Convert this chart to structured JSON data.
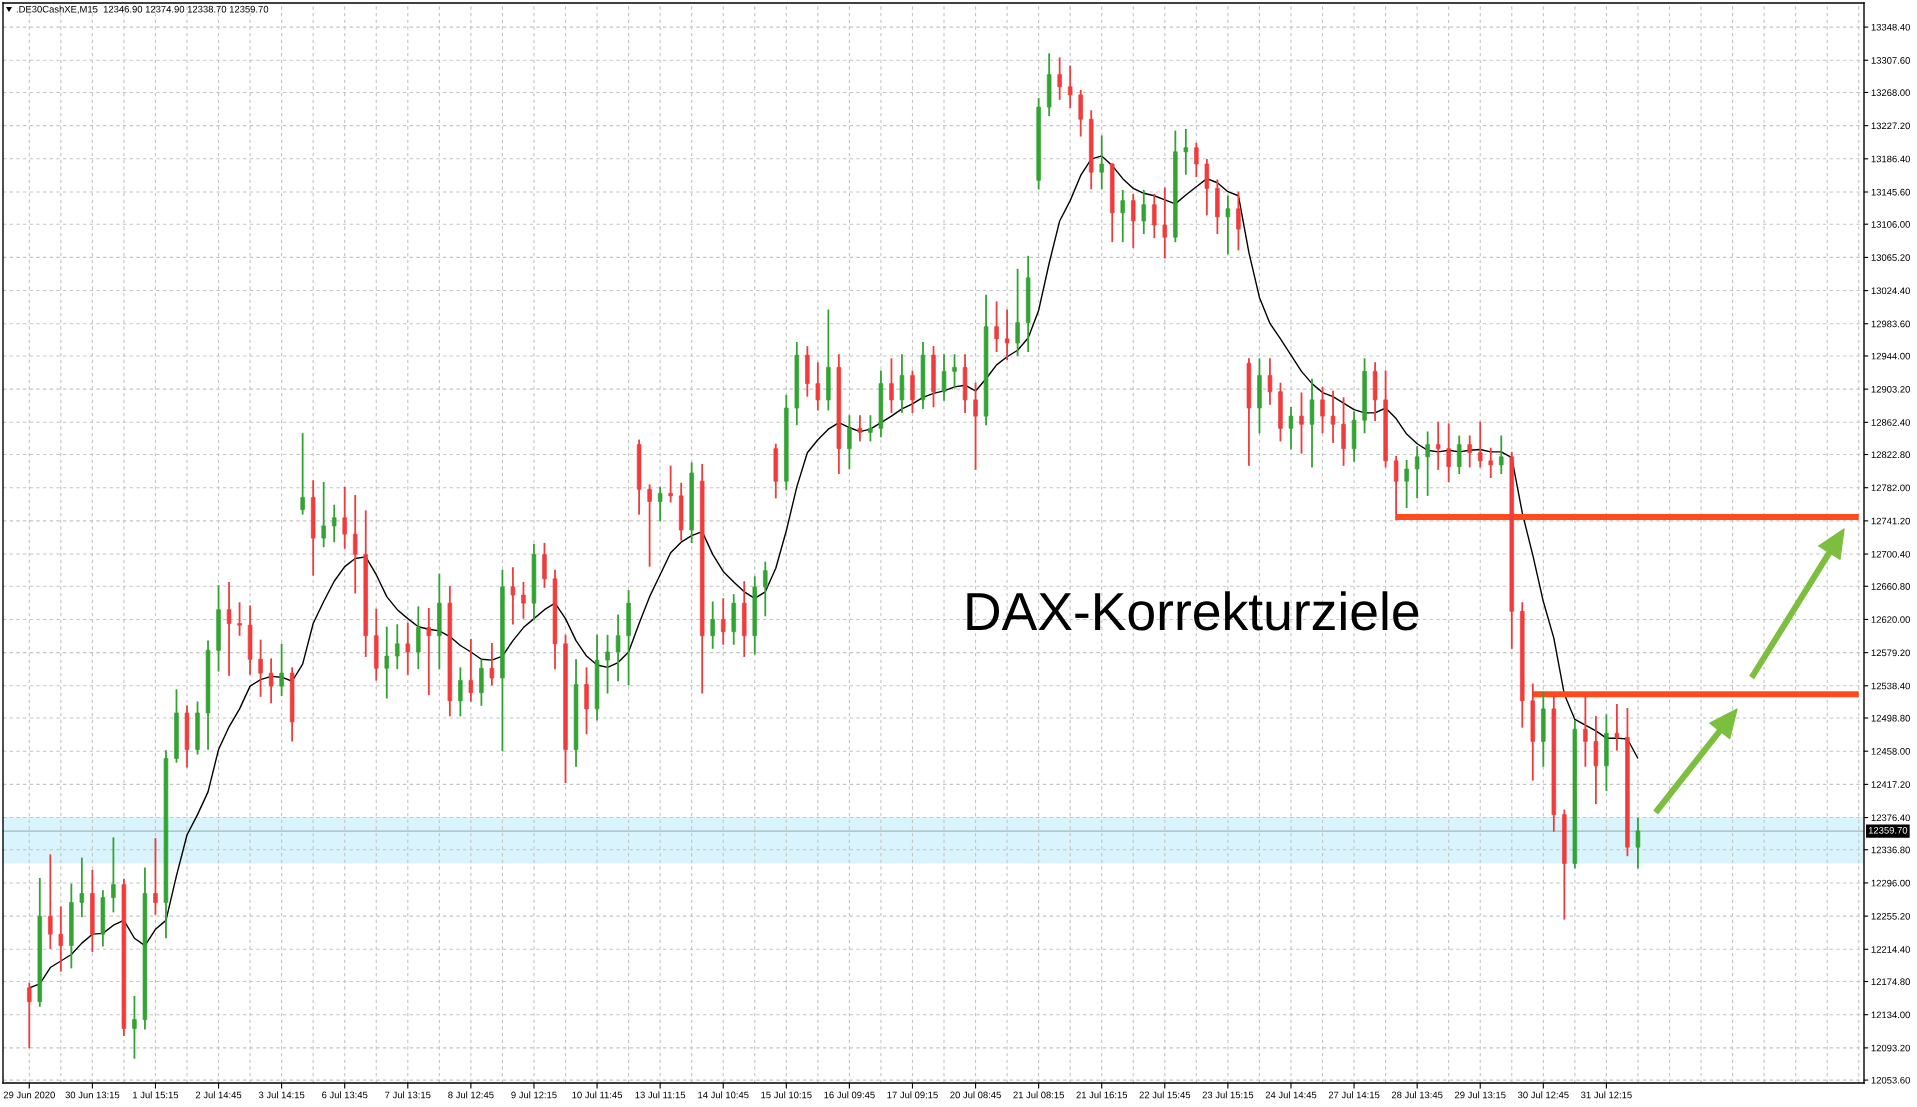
{
  "chart_data": {
    "type": "candlestick",
    "title": "DAX-Korrekturziele",
    "annotations": [
      ".DE30CashXE,M15  12346.90 12374.90 12338.70 12359.70"
    ],
    "categories": [
      "29 Jun 2020",
      null,
      null,
      null,
      null,
      null,
      "30 Jun 13:15",
      null,
      null,
      null,
      null,
      null,
      "1 Jul 15:15",
      null,
      null,
      null,
      null,
      null,
      "2 Jul 14:45",
      null,
      null,
      null,
      null,
      null,
      "3 Jul 14:15",
      null,
      null,
      null,
      null,
      null,
      "6 Jul 13:45",
      null,
      null,
      null,
      null,
      null,
      "7 Jul 13:15",
      null,
      null,
      null,
      null,
      null,
      "8 Jul 12:45",
      null,
      null,
      null,
      null,
      null,
      "9 Jul 12:15",
      null,
      null,
      null,
      null,
      null,
      "10 Jul 11:45",
      null,
      null,
      null,
      null,
      null,
      "13 Jul 11:15",
      null,
      null,
      null,
      null,
      null,
      "14 Jul 10:45",
      null,
      null,
      null,
      null,
      null,
      "15 Jul 10:15",
      null,
      null,
      null,
      null,
      null,
      "16 Jul 09:45",
      null,
      null,
      null,
      null,
      null,
      "17 Jul 09:15",
      null,
      null,
      null,
      null,
      null,
      "20 Jul 08:45",
      null,
      null,
      null,
      null,
      null,
      "21 Jul 08:15",
      null,
      null,
      null,
      null,
      null,
      "21 Jul 16:15",
      null,
      null,
      null,
      null,
      null,
      "22 Jul 15:45",
      null,
      null,
      null,
      null,
      null,
      "23 Jul 15:15",
      null,
      null,
      null,
      null,
      null,
      "24 Jul 14:45",
      null,
      null,
      null,
      null,
      null,
      "27 Jul 14:15",
      null,
      null,
      null,
      null,
      null,
      "28 Jul 13:45",
      null,
      null,
      null,
      null,
      null,
      "29 Jul 13:15",
      null,
      null,
      null,
      null,
      null,
      "30 Jul 12:45",
      null,
      null,
      null,
      null,
      null,
      "31 Jul 12:15",
      null,
      null,
      null,
      null,
      null,
      null,
      null,
      null,
      null,
      null,
      null,
      null,
      null,
      null,
      null,
      null,
      null,
      null,
      null,
      null,
      null,
      null,
      null,
      null
    ],
    "ohlc": [
      [
        12167,
        12172,
        12094,
        12150
      ],
      [
        12150,
        12301,
        12145,
        12255
      ],
      [
        12255,
        12330,
        12216,
        12233
      ],
      [
        12233,
        12266,
        12188,
        12219
      ],
      [
        12219,
        12294,
        12192,
        12272
      ],
      [
        12272,
        12326,
        12255,
        12283
      ],
      [
        12283,
        12311,
        12212,
        12233
      ],
      [
        12233,
        12286,
        12219,
        12278
      ],
      [
        12278,
        12351,
        12261,
        12294
      ],
      [
        12294,
        12300,
        12109,
        12117
      ],
      [
        12117,
        12156,
        12081,
        12128
      ],
      [
        12128,
        12314,
        12117,
        12283
      ],
      [
        12283,
        12350,
        12258,
        12272
      ],
      [
        12272,
        12458,
        12229,
        12449
      ],
      [
        12449,
        12533,
        12445,
        12505
      ],
      [
        12505,
        12513,
        12439,
        12460
      ],
      [
        12460,
        12518,
        12455,
        12505
      ],
      [
        12505,
        12593,
        12461,
        12582
      ],
      [
        12582,
        12661,
        12557,
        12632
      ],
      [
        12632,
        12665,
        12552,
        12615
      ],
      [
        12615,
        12640,
        12601,
        12613
      ],
      [
        12613,
        12636,
        12553,
        12571
      ],
      [
        12571,
        12594,
        12526,
        12554
      ],
      [
        12554,
        12571,
        12518,
        12538
      ],
      [
        12538,
        12589,
        12527,
        12554
      ],
      [
        12554,
        12560,
        12471,
        12494
      ],
      [
        12755,
        12848,
        12750,
        12770
      ],
      [
        12770,
        12790,
        12675,
        12720
      ],
      [
        12720,
        12788,
        12710,
        12735
      ],
      [
        12735,
        12760,
        12716,
        12745
      ],
      [
        12745,
        12782,
        12708,
        12725
      ],
      [
        12725,
        12772,
        12653,
        12700
      ],
      [
        12700,
        12753,
        12575,
        12600
      ],
      [
        12600,
        12632,
        12546,
        12560
      ],
      [
        12560,
        12610,
        12524,
        12575
      ],
      [
        12575,
        12613,
        12560,
        12590
      ],
      [
        12590,
        12615,
        12553,
        12580
      ],
      [
        12580,
        12635,
        12560,
        12610
      ],
      [
        12610,
        12633,
        12528,
        12600
      ],
      [
        12600,
        12675,
        12560,
        12640
      ],
      [
        12640,
        12660,
        12502,
        12520
      ],
      [
        12520,
        12560,
        12502,
        12545
      ],
      [
        12545,
        12595,
        12520,
        12530
      ],
      [
        12530,
        12570,
        12515,
        12560
      ],
      [
        12560,
        12590,
        12540,
        12548
      ],
      [
        12548,
        12680,
        12459,
        12660
      ],
      [
        12660,
        12683,
        12615,
        12650
      ],
      [
        12650,
        12665,
        12622,
        12640
      ],
      [
        12640,
        12712,
        12620,
        12700
      ],
      [
        12700,
        12713,
        12660,
        12670
      ],
      [
        12670,
        12680,
        12560,
        12590
      ],
      [
        12590,
        12600,
        12420,
        12460
      ],
      [
        12460,
        12570,
        12440,
        12540
      ],
      [
        12540,
        12560,
        12480,
        12510
      ],
      [
        12510,
        12600,
        12497,
        12570
      ],
      [
        12570,
        12600,
        12530,
        12580
      ],
      [
        12580,
        12625,
        12545,
        12600
      ],
      [
        12600,
        12655,
        12540,
        12640
      ],
      [
        12835,
        12840,
        12750,
        12780
      ],
      [
        12780,
        12785,
        12686,
        12765
      ],
      [
        12765,
        12782,
        12742,
        12775
      ],
      [
        12775,
        12808,
        12765,
        12772
      ],
      [
        12772,
        12787,
        12718,
        12730
      ],
      [
        12730,
        12812,
        12715,
        12800
      ],
      [
        12790,
        12810,
        12530,
        12600
      ],
      [
        12600,
        12641,
        12585,
        12620
      ],
      [
        12620,
        12645,
        12590,
        12605
      ],
      [
        12605,
        12650,
        12590,
        12640
      ],
      [
        12640,
        12666,
        12575,
        12600
      ],
      [
        12600,
        12672,
        12578,
        12660
      ],
      [
        12660,
        12690,
        12625,
        12680
      ],
      [
        12830,
        12835,
        12770,
        12790
      ],
      [
        12790,
        12895,
        12780,
        12880
      ],
      [
        12880,
        12960,
        12860,
        12945
      ],
      [
        12945,
        12955,
        12895,
        12910
      ],
      [
        12910,
        12935,
        12878,
        12890
      ],
      [
        12890,
        13000,
        12878,
        12930
      ],
      [
        12930,
        12945,
        12800,
        12830
      ],
      [
        12830,
        12870,
        12806,
        12855
      ],
      [
        12855,
        12870,
        12840,
        12850
      ],
      [
        12850,
        12870,
        12840,
        12855
      ],
      [
        12855,
        12925,
        12845,
        12910
      ],
      [
        12910,
        12940,
        12875,
        12890
      ],
      [
        12890,
        12945,
        12875,
        12920
      ],
      [
        12920,
        12925,
        12875,
        12890
      ],
      [
        12890,
        12960,
        12880,
        12945
      ],
      [
        12945,
        12955,
        12882,
        12900
      ],
      [
        12900,
        12945,
        12890,
        12925
      ],
      [
        12925,
        12945,
        12905,
        12930
      ],
      [
        12930,
        12945,
        12875,
        12890
      ],
      [
        12890,
        12910,
        12805,
        12870
      ],
      [
        12870,
        13018,
        12860,
        12980
      ],
      [
        12980,
        13010,
        12950,
        12965
      ],
      [
        12965,
        13000,
        12940,
        12960
      ],
      [
        12960,
        13050,
        12945,
        12985
      ],
      [
        12985,
        13066,
        12950,
        13040
      ],
      [
        13160,
        13260,
        13150,
        13250
      ],
      [
        13250,
        13315,
        13240,
        13290
      ],
      [
        13290,
        13310,
        13260,
        13275
      ],
      [
        13275,
        13300,
        13250,
        13265
      ],
      [
        13265,
        13270,
        13215,
        13235
      ],
      [
        13235,
        13245,
        13150,
        13170
      ],
      [
        13170,
        13214,
        13150,
        13180
      ],
      [
        13180,
        13180,
        13085,
        13120
      ],
      [
        13120,
        13147,
        13085,
        13135
      ],
      [
        13135,
        13142,
        13078,
        13110
      ],
      [
        13110,
        13147,
        13095,
        13130
      ],
      [
        13130,
        13142,
        13090,
        13105
      ],
      [
        13105,
        13150,
        13065,
        13090
      ],
      [
        13090,
        13220,
        13085,
        13195
      ],
      [
        13195,
        13222,
        13168,
        13200
      ],
      [
        13200,
        13205,
        13165,
        13180
      ],
      [
        13180,
        13185,
        13118,
        13150
      ],
      [
        13150,
        13160,
        13095,
        13115
      ],
      [
        13115,
        13140,
        13070,
        13125
      ],
      [
        13125,
        13145,
        13075,
        13100
      ],
      [
        12935,
        12940,
        12810,
        12880
      ],
      [
        12880,
        12940,
        12850,
        12920
      ],
      [
        12920,
        12940,
        12885,
        12900
      ],
      [
        12900,
        12910,
        12840,
        12855
      ],
      [
        12855,
        12880,
        12830,
        12870
      ],
      [
        12870,
        12898,
        12825,
        12860
      ],
      [
        12860,
        12915,
        12808,
        12890
      ],
      [
        12890,
        12905,
        12850,
        12870
      ],
      [
        12870,
        12900,
        12838,
        12860
      ],
      [
        12860,
        12892,
        12810,
        12830
      ],
      [
        12830,
        12875,
        12815,
        12865
      ],
      [
        12865,
        12940,
        12850,
        12925
      ],
      [
        12925,
        12935,
        12865,
        12890
      ],
      [
        12890,
        12925,
        12808,
        12815
      ],
      [
        12815,
        12820,
        12743,
        12790
      ],
      [
        12790,
        12815,
        12758,
        12805
      ],
      [
        12805,
        12832,
        12770,
        12820
      ],
      [
        12820,
        12850,
        12773,
        12835
      ],
      [
        12835,
        12862,
        12805,
        12830
      ],
      [
        12830,
        12860,
        12790,
        12808
      ],
      [
        12808,
        12845,
        12800,
        12835
      ],
      [
        12835,
        12845,
        12808,
        12825
      ],
      [
        12825,
        12862,
        12808,
        12815
      ],
      [
        12815,
        12830,
        12795,
        12810
      ],
      [
        12810,
        12845,
        12800,
        12820
      ],
      [
        12820,
        12825,
        12585,
        12630
      ],
      [
        12630,
        12640,
        12488,
        12520
      ],
      [
        12520,
        12540,
        12423,
        12470
      ],
      [
        12470,
        12530,
        12440,
        12510
      ],
      [
        12510,
        12525,
        12360,
        12380
      ],
      [
        12380,
        12385,
        12252,
        12320
      ],
      [
        12320,
        12495,
        12315,
        12485
      ],
      [
        12485,
        12525,
        12440,
        12470
      ],
      [
        12470,
        12500,
        12394,
        12440
      ],
      [
        12440,
        12502,
        12410,
        12480
      ],
      [
        12480,
        12515,
        12460,
        12475
      ],
      [
        12475,
        12510,
        12330,
        12340
      ],
      [
        12340,
        12375,
        12315,
        12360
      ],
      null,
      null,
      null,
      null,
      null,
      null,
      null,
      null,
      null,
      null,
      null,
      null,
      null,
      null,
      null,
      null,
      null,
      null,
      null,
      null,
      null
    ],
    "colors": [
      "#f03c3c",
      "#33a333",
      "#f03c3c",
      "#f03c3c",
      "#33a333",
      "#33a333",
      "#f03c3c",
      "#33a333",
      "#33a333",
      "#f03c3c",
      "#33a333",
      "#33a333",
      "#f03c3c",
      "#33a333",
      "#33a333",
      "#f03c3c",
      "#33a333",
      "#33a333",
      "#33a333",
      "#f03c3c",
      "#f03c3c",
      "#f03c3c",
      "#f03c3c",
      "#f03c3c",
      "#33a333",
      "#f03c3c",
      "#33a333",
      "#f03c3c",
      "#33a333",
      "#33a333",
      "#f03c3c",
      "#f03c3c",
      "#f03c3c",
      "#f03c3c",
      "#33a333",
      "#33a333",
      "#f03c3c",
      "#33a333",
      "#f03c3c",
      "#33a333",
      "#f03c3c",
      "#33a333",
      "#f03c3c",
      "#33a333",
      "#f03c3c",
      "#33a333",
      "#f03c3c",
      "#f03c3c",
      "#33a333",
      "#f03c3c",
      "#f03c3c",
      "#f03c3c",
      "#33a333",
      "#f03c3c",
      "#33a333",
      "#33a333",
      "#33a333",
      "#33a333",
      "#f03c3c",
      "#f03c3c",
      "#33a333",
      "#f03c3c",
      "#f03c3c",
      "#33a333",
      "#f03c3c",
      "#33a333",
      "#f03c3c",
      "#33a333",
      "#f03c3c",
      "#33a333",
      "#33a333",
      "#f03c3c",
      "#33a333",
      "#33a333",
      "#f03c3c",
      "#f03c3c",
      "#33a333",
      "#f03c3c",
      "#33a333",
      "#f03c3c",
      "#33a333",
      "#33a333",
      "#f03c3c",
      "#33a333",
      "#f03c3c",
      "#33a333",
      "#f03c3c",
      "#33a333",
      "#33a333",
      "#f03c3c",
      "#f03c3c",
      "#33a333",
      "#f03c3c",
      "#f03c3c",
      "#33a333",
      "#33a333",
      "#33a333",
      "#33a333",
      "#f03c3c",
      "#f03c3c",
      "#f03c3c",
      "#f03c3c",
      "#33a333",
      "#f03c3c",
      "#33a333",
      "#f03c3c",
      "#33a333",
      "#f03c3c",
      "#f03c3c",
      "#33a333",
      "#33a333",
      "#f03c3c",
      "#f03c3c",
      "#f03c3c",
      "#33a333",
      "#f03c3c",
      "#f03c3c",
      "#33a333",
      "#f03c3c",
      "#f03c3c",
      "#33a333",
      "#f03c3c",
      "#33a333",
      "#f03c3c",
      "#f03c3c",
      "#f03c3c",
      "#33a333",
      "#33a333",
      "#f03c3c",
      "#f03c3c",
      "#f03c3c",
      "#33a333",
      "#33a333",
      "#33a333",
      "#f03c3c",
      "#f03c3c",
      "#33a333",
      "#f03c3c",
      "#f03c3c",
      "#f03c3c",
      "#33a333",
      "#f03c3c",
      "#f03c3c",
      "#f03c3c",
      "#33a333",
      "#f03c3c",
      "#f03c3c",
      "#33a333",
      "#f03c3c",
      "#f03c3c",
      "#33a333",
      "#f03c3c",
      "#f03c3c",
      "#33a333",
      null,
      null,
      null,
      null,
      null,
      null,
      null,
      null,
      null,
      null,
      null,
      null,
      null,
      null,
      null,
      null,
      null,
      null,
      null,
      null,
      null
    ],
    "series": [
      {
        "type": "line",
        "color": "#000000",
        "values": [
          12167,
          12172,
          12192,
          12200,
          12208,
          12222,
          12233,
          12234,
          12244,
          12250,
          12228,
          12219,
          12239,
          12250,
          12305,
          12355,
          12380,
          12408,
          12460,
          12488,
          12510,
          12538,
          12546,
          12550,
          12549,
          12544,
          12565,
          12615,
          12642,
          12667,
          12685,
          12695,
          12697,
          12675,
          12648,
          12632,
          12621,
          12611,
          12608,
          12606,
          12599,
          12588,
          12580,
          12571,
          12570,
          12575,
          12594,
          12610,
          12621,
          12632,
          12640,
          12621,
          12594,
          12575,
          12564,
          12561,
          12567,
          12580,
          12615,
          12648,
          12675,
          12702,
          12715,
          12723,
          12728,
          12700,
          12679,
          12666,
          12654,
          12646,
          12654,
          12683,
          12729,
          12783,
          12825,
          12841,
          12854,
          12862,
          12856,
          12851,
          12854,
          12862,
          12870,
          12879,
          12885,
          12893,
          12898,
          12901,
          12906,
          12908,
          12901,
          12916,
          12933,
          12943,
          12951,
          12966,
          13000,
          13058,
          13110,
          13135,
          13166,
          13186,
          13190,
          13178,
          13162,
          13150,
          13144,
          13141,
          13136,
          13131,
          13142,
          13152,
          13162,
          13157,
          13146,
          13141,
          13071,
          13016,
          12984,
          12965,
          12945,
          12925,
          12910,
          12899,
          12894,
          12886,
          12878,
          12874,
          12874,
          12880,
          12867,
          12848,
          12836,
          12828,
          12826,
          12828,
          12826,
          12828,
          12829,
          12826,
          12826,
          12819,
          12751,
          12699,
          12642,
          12597,
          12528,
          12497,
          12490,
          12483,
          12474,
          12474,
          12473,
          12449,
          null,
          null,
          null,
          null,
          null,
          null,
          null,
          null,
          null,
          null,
          null,
          null,
          null,
          null,
          null,
          null,
          null,
          null,
          null,
          null,
          null
        ]
      },
      {
        "type": "line",
        "color": "#ff4a1c",
        "values": [
          null,
          null,
          null,
          null,
          null,
          null,
          null,
          null,
          null,
          null,
          null,
          null,
          null,
          null,
          null,
          null,
          null,
          null,
          null,
          null,
          null,
          null,
          null,
          null,
          null,
          null,
          null,
          null,
          null,
          null,
          null,
          null,
          null,
          null,
          null,
          null,
          null,
          null,
          null,
          null,
          null,
          null,
          null,
          null,
          null,
          null,
          null,
          null,
          null,
          null,
          null,
          null,
          null,
          null,
          null,
          null,
          null,
          null,
          null,
          null,
          null,
          null,
          null,
          null,
          null,
          null,
          null,
          null,
          null,
          null,
          null,
          null,
          null,
          null,
          null,
          null,
          null,
          null,
          null,
          null,
          null,
          null,
          null,
          null,
          null,
          null,
          null,
          null,
          null,
          null,
          null,
          null,
          null,
          null,
          null,
          null,
          null,
          null,
          null,
          null,
          null,
          null,
          null,
          null,
          null,
          null,
          null,
          null,
          null,
          null,
          null,
          null,
          null,
          null,
          null,
          null,
          null,
          null,
          null,
          null,
          null,
          null,
          null,
          null,
          null,
          null,
          null,
          null,
          null,
          null,
          12746,
          12746,
          12746,
          12746,
          12746,
          12746,
          12746,
          12746,
          12746,
          12746,
          12746,
          12746,
          12746,
          12746,
          12746,
          12746,
          12746,
          12746,
          12746,
          12746,
          12746,
          12746,
          12746,
          12746,
          12746,
          12746,
          12746,
          12746,
          12746,
          12746,
          12746,
          12746,
          12746,
          12746,
          12746,
          12746,
          12746,
          12746,
          12746,
          12746,
          12746,
          12746,
          12746,
          12746,
          12746
        ]
      },
      {
        "type": "line",
        "color": "#ff4a1c",
        "values": [
          null,
          null,
          null,
          null,
          null,
          null,
          null,
          null,
          null,
          null,
          null,
          null,
          null,
          null,
          null,
          null,
          null,
          null,
          null,
          null,
          null,
          null,
          null,
          null,
          null,
          null,
          null,
          null,
          null,
          null,
          null,
          null,
          null,
          null,
          null,
          null,
          null,
          null,
          null,
          null,
          null,
          null,
          null,
          null,
          null,
          null,
          null,
          null,
          null,
          null,
          null,
          null,
          null,
          null,
          null,
          null,
          null,
          null,
          null,
          null,
          null,
          null,
          null,
          null,
          null,
          null,
          null,
          null,
          null,
          null,
          null,
          null,
          null,
          null,
          null,
          null,
          null,
          null,
          null,
          null,
          null,
          null,
          null,
          null,
          null,
          null,
          null,
          null,
          null,
          null,
          null,
          null,
          null,
          null,
          null,
          null,
          null,
          null,
          null,
          null,
          null,
          null,
          null,
          null,
          null,
          null,
          null,
          null,
          null,
          null,
          null,
          null,
          null,
          null,
          null,
          null,
          null,
          null,
          null,
          null,
          null,
          null,
          null,
          null,
          null,
          null,
          null,
          null,
          null,
          null,
          null,
          null,
          null,
          null,
          null,
          null,
          null,
          null,
          null,
          null,
          null,
          null,
          null,
          12528,
          12528,
          12528,
          12528,
          12528,
          12528,
          12528,
          12528,
          12528,
          12528,
          12528,
          12528,
          12528,
          12528,
          12528,
          12528,
          12528,
          12528,
          12528,
          12528,
          12528,
          12528,
          12528,
          12528,
          12528,
          12528,
          12528,
          12528,
          12528,
          12528,
          12528,
          12528
        ]
      }
    ],
    "ylim": [
      12050,
      13378
    ],
    "yticks": [
      {
        "value": 13348.4,
        "label": "13348.40"
      },
      {
        "value": 13307.6,
        "label": "13307.60"
      },
      {
        "value": 13268.0,
        "label": "13268.00"
      },
      {
        "value": 13227.2,
        "label": "13227.20"
      },
      {
        "value": 13186.4,
        "label": "13186.40"
      },
      {
        "value": 13145.6,
        "label": "13145.60"
      },
      {
        "value": 13106.0,
        "label": "13106.00"
      },
      {
        "value": 13065.2,
        "label": "13065.20"
      },
      {
        "value": 13024.4,
        "label": "13024.40"
      },
      {
        "value": 12983.6,
        "label": "12983.60"
      },
      {
        "value": 12944.0,
        "label": "12944.00"
      },
      {
        "value": 12903.2,
        "label": "12903.20"
      },
      {
        "value": 12862.4,
        "label": "12862.40"
      },
      {
        "value": 12822.8,
        "label": "12822.80"
      },
      {
        "value": 12782.0,
        "label": "12782.00"
      },
      {
        "value": 12741.2,
        "label": "12741.20"
      },
      {
        "value": 12700.4,
        "label": "12700.40"
      },
      {
        "value": 12660.8,
        "label": "12660.80"
      },
      {
        "value": 12620.0,
        "label": "12620.00"
      },
      {
        "value": 12579.2,
        "label": "12579.20"
      },
      {
        "value": 12538.4,
        "label": "12538.40"
      },
      {
        "value": 12498.8,
        "label": "12498.80"
      },
      {
        "value": 12458.0,
        "label": "12458.00"
      },
      {
        "value": 12417.2,
        "label": "12417.20"
      },
      {
        "value": 12376.4,
        "label": "12376.40"
      },
      {
        "value": 12336.8,
        "label": "12336.80"
      },
      {
        "value": 12296.0,
        "label": "12296.00"
      },
      {
        "value": 12255.2,
        "label": "12255.20"
      },
      {
        "value": 12214.4,
        "label": "12214.40"
      },
      {
        "value": 12174.8,
        "label": "12174.80"
      },
      {
        "value": 12134.0,
        "label": "12134.00"
      },
      {
        "value": 12093.2,
        "label": "12093.20"
      },
      {
        "value": 12053.6,
        "label": "12053.60"
      }
    ],
    "grid": true,
    "bands": [
      {
        "axis": "y",
        "from": 12320,
        "to": 12377,
        "color": "#d9f4fc"
      }
    ],
    "ref_lines": [
      {
        "axis": "y",
        "value": 12359.7,
        "label": "12359.70",
        "color": "#a3b9be"
      }
    ]
  }
}
